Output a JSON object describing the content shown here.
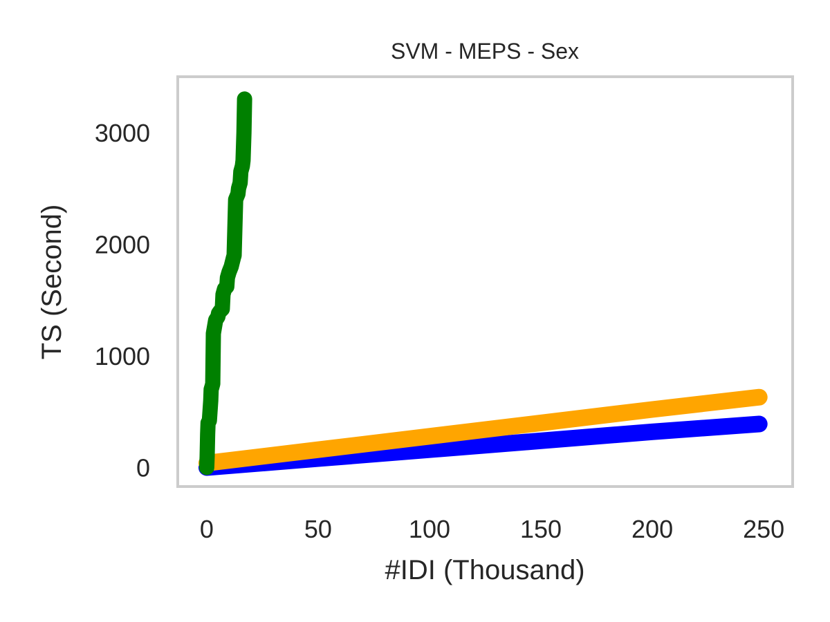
{
  "chart_data": {
    "type": "line",
    "title": "SVM - MEPS - Sex",
    "xlabel": "#IDI (Thousand)",
    "ylabel": "TS (Second)",
    "xlim": [
      -13,
      263
    ],
    "ylim": [
      -170,
      3500
    ],
    "xticks": [
      0,
      50,
      100,
      150,
      200,
      250
    ],
    "yticks": [
      0,
      1000,
      2000,
      3000
    ],
    "grid": false,
    "colors": {
      "frame": "#cccccc",
      "text": "#262626"
    },
    "series": [
      {
        "color": "#0000ff",
        "x": [
          0,
          50,
          100,
          150,
          200,
          248
        ],
        "y": [
          0,
          80,
          160,
          240,
          320,
          390
        ]
      },
      {
        "color": "#ffa500",
        "x": [
          0,
          50,
          100,
          150,
          200,
          248
        ],
        "y": [
          40,
          160,
          280,
          400,
          520,
          630
        ]
      },
      {
        "color": "#008000",
        "x": [
          0,
          0.2,
          0.4,
          0.6,
          1.2,
          1.8,
          2,
          2.3,
          2.7,
          3,
          4,
          5,
          5.3,
          6,
          7,
          7.3,
          8,
          9,
          9.3,
          10,
          11,
          12,
          12.3,
          13,
          14,
          14.3,
          15,
          15.3,
          16,
          16.3,
          16.7,
          17
        ],
        "y": [
          0,
          100,
          300,
          400,
          420,
          600,
          700,
          720,
          750,
          1200,
          1320,
          1350,
          1380,
          1400,
          1420,
          1550,
          1600,
          1620,
          1700,
          1750,
          1800,
          1880,
          1900,
          2400,
          2450,
          2500,
          2550,
          2650,
          2700,
          2750,
          3000,
          3300
        ]
      }
    ]
  }
}
